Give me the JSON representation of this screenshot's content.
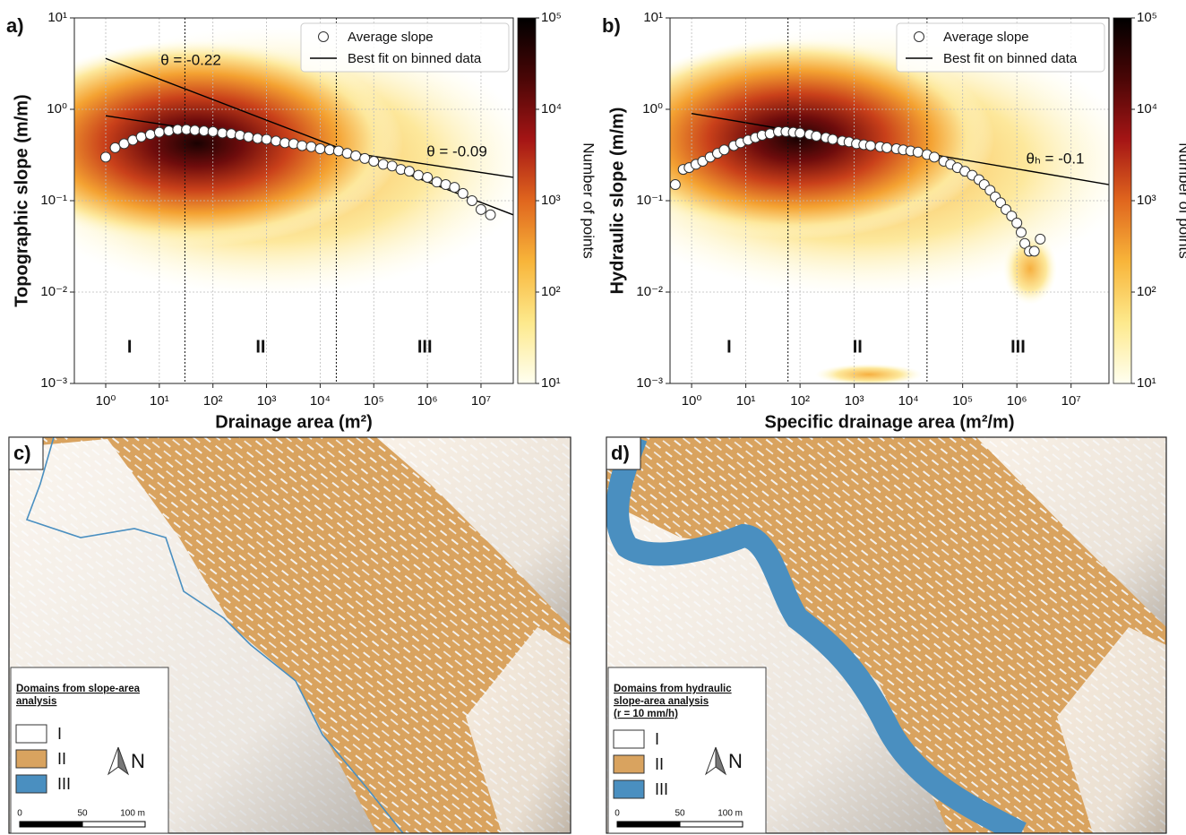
{
  "chart_data": [
    {
      "type": "scatter",
      "panel": "a)",
      "x_label": "Drainage area (m²)",
      "y_label": "Topographic slope (m/m)",
      "log_x": true,
      "log_y": true,
      "xlim": [
        0.26,
        40000000
      ],
      "ylim": [
        0.001,
        10
      ],
      "xticks": [
        {
          "value": 1,
          "label": "10⁰"
        },
        {
          "value": 10,
          "label": "10¹"
        },
        {
          "value": 100,
          "label": "10²"
        },
        {
          "value": 1000,
          "label": "10³"
        },
        {
          "value": 10000,
          "label": "10⁴"
        },
        {
          "value": 100000,
          "label": "10⁵"
        },
        {
          "value": 1000000,
          "label": "10⁶"
        },
        {
          "value": 10000000,
          "label": "10⁷"
        }
      ],
      "yticks": [
        {
          "value": 0.001,
          "label": "10⁻³"
        },
        {
          "value": 0.01,
          "label": "10⁻²"
        },
        {
          "value": 0.1,
          "label": "10⁻¹"
        },
        {
          "value": 1,
          "label": "10⁰"
        },
        {
          "value": 10,
          "label": "10¹"
        }
      ],
      "grid": true,
      "legend": "upper right",
      "series": [
        {
          "name": "Average slope",
          "color": "#ffffff",
          "x": [
            1,
            1.5,
            2.2,
            3.2,
            4.6,
            6.8,
            10,
            15,
            22,
            32,
            46,
            68,
            100,
            150,
            220,
            320,
            460,
            680,
            1000,
            1500,
            2200,
            3200,
            4600,
            6800,
            10000,
            15000,
            22000,
            32000,
            46000,
            68000,
            100000,
            150000,
            220000,
            320000,
            460000,
            680000,
            1000000,
            1500000,
            2200000,
            3200000,
            4600000,
            6800000,
            10000000,
            15000000
          ],
          "values": [
            0.3,
            0.38,
            0.42,
            0.46,
            0.5,
            0.53,
            0.56,
            0.58,
            0.6,
            0.6,
            0.59,
            0.58,
            0.57,
            0.55,
            0.54,
            0.52,
            0.5,
            0.48,
            0.47,
            0.45,
            0.43,
            0.42,
            0.4,
            0.39,
            0.37,
            0.36,
            0.35,
            0.33,
            0.31,
            0.29,
            0.27,
            0.25,
            0.24,
            0.22,
            0.21,
            0.19,
            0.18,
            0.16,
            0.15,
            0.14,
            0.12,
            0.1,
            0.08,
            0.07
          ]
        }
      ],
      "fit": {
        "name": "Best fit on binned data",
        "color": "#000000",
        "lines": [
          {
            "x": [
              1,
              40000000
            ],
            "values": [
              3.6,
              0.07
            ]
          },
          {
            "x": [
              1,
              40000000
            ],
            "values": [
              0.85,
              0.18
            ]
          }
        ]
      },
      "annotations": [
        "θ = -0.22",
        "θ = -0.09"
      ],
      "domain_bounds": [
        30,
        20000
      ],
      "domain_labels": [
        "I",
        "II",
        "III"
      ],
      "colorbar": {
        "label": "Number of points",
        "lim": [
          10,
          100000
        ],
        "ticks": [
          {
            "value": 10,
            "label": "10¹"
          },
          {
            "value": 100,
            "label": "10²"
          },
          {
            "value": 1000,
            "label": "10³"
          },
          {
            "value": 10000,
            "label": "10⁴"
          },
          {
            "value": 100000,
            "label": "10⁵"
          }
        ],
        "colors": [
          "#fffff0",
          "#fde98c",
          "#f8b53a",
          "#e0661e",
          "#a51515",
          "#4a0606",
          "#000000"
        ]
      }
    },
    {
      "type": "scatter",
      "panel": "b)",
      "x_label": "Specific drainage area (m²/m)",
      "y_label": "Hydraulic slope (m/m)",
      "log_x": true,
      "log_y": true,
      "xlim": [
        0.4,
        50000000
      ],
      "ylim": [
        0.001,
        10
      ],
      "xticks": [
        {
          "value": 1,
          "label": "10⁰"
        },
        {
          "value": 10,
          "label": "10¹"
        },
        {
          "value": 100,
          "label": "10²"
        },
        {
          "value": 1000,
          "label": "10³"
        },
        {
          "value": 10000,
          "label": "10⁴"
        },
        {
          "value": 100000,
          "label": "10⁵"
        },
        {
          "value": 1000000,
          "label": "10⁶"
        },
        {
          "value": 10000000,
          "label": "10⁷"
        }
      ],
      "yticks": [
        {
          "value": 0.001,
          "label": "10⁻³"
        },
        {
          "value": 0.01,
          "label": "10⁻²"
        },
        {
          "value": 0.1,
          "label": "10⁻¹"
        },
        {
          "value": 1,
          "label": "10⁰"
        },
        {
          "value": 10,
          "label": "10¹"
        }
      ],
      "grid": true,
      "legend": "upper right",
      "series": [
        {
          "name": "Average slope",
          "color": "#ffffff",
          "x": [
            0.5,
            0.7,
            0.9,
            1.2,
            1.6,
            2.2,
            3,
            4,
            6,
            8,
            11,
            15,
            20,
            28,
            40,
            55,
            75,
            100,
            150,
            200,
            300,
            400,
            600,
            800,
            1100,
            1500,
            2000,
            3000,
            4000,
            6000,
            8000,
            11000,
            15000,
            22000,
            30000,
            45000,
            60000,
            80000,
            110000,
            150000,
            200000,
            250000,
            320000,
            400000,
            500000,
            630000,
            800000,
            1000000,
            1200000,
            1400000,
            1700000,
            2100000,
            2700000
          ],
          "values": [
            0.15,
            0.22,
            0.23,
            0.25,
            0.27,
            0.3,
            0.33,
            0.36,
            0.4,
            0.43,
            0.46,
            0.49,
            0.52,
            0.54,
            0.57,
            0.57,
            0.56,
            0.55,
            0.53,
            0.51,
            0.49,
            0.47,
            0.45,
            0.44,
            0.42,
            0.41,
            0.4,
            0.39,
            0.38,
            0.37,
            0.36,
            0.35,
            0.34,
            0.32,
            0.3,
            0.27,
            0.25,
            0.23,
            0.21,
            0.19,
            0.17,
            0.15,
            0.13,
            0.11,
            0.095,
            0.08,
            0.068,
            0.057,
            0.045,
            0.034,
            0.028,
            0.028,
            0.038
          ]
        }
      ],
      "fit": {
        "name": "Best fit on binned data",
        "color": "#000000",
        "lines": [
          {
            "x": [
              1,
              50000000
            ],
            "values": [
              0.9,
              0.15
            ]
          }
        ]
      },
      "annotations": [
        "θₕ = -0.1"
      ],
      "domain_bounds": [
        60,
        22000
      ],
      "domain_labels": [
        "I",
        "II",
        "III"
      ],
      "colorbar": {
        "label": "Number of points",
        "lim": [
          10,
          100000
        ],
        "ticks": [
          {
            "value": 10,
            "label": "10¹"
          },
          {
            "value": 100,
            "label": "10²"
          },
          {
            "value": 1000,
            "label": "10³"
          },
          {
            "value": 10000,
            "label": "10⁴"
          },
          {
            "value": 100000,
            "label": "10⁵"
          }
        ],
        "colors": [
          "#fffff0",
          "#fde98c",
          "#f8b53a",
          "#e0661e",
          "#a51515",
          "#4a0606",
          "#000000"
        ]
      }
    }
  ],
  "maps": [
    {
      "panel": "c)",
      "legend_title": [
        "Domains from slope-area",
        "analysis"
      ],
      "items": [
        {
          "label": "I",
          "color": "#ffffff"
        },
        {
          "label": "II",
          "color": "#d9a35f"
        },
        {
          "label": "III",
          "color": "#4a8fc0"
        }
      ],
      "north": "N",
      "scale": [
        "0",
        "50",
        "100 m"
      ]
    },
    {
      "panel": "d)",
      "legend_title": [
        "Domains from hydraulic",
        "slope-area analysis",
        "(r = 10 mm/h)"
      ],
      "items": [
        {
          "label": "I",
          "color": "#ffffff"
        },
        {
          "label": "II",
          "color": "#d9a35f"
        },
        {
          "label": "III",
          "color": "#4a8fc0"
        }
      ],
      "north": "N",
      "scale": [
        "0",
        "50",
        "100 m"
      ]
    }
  ]
}
